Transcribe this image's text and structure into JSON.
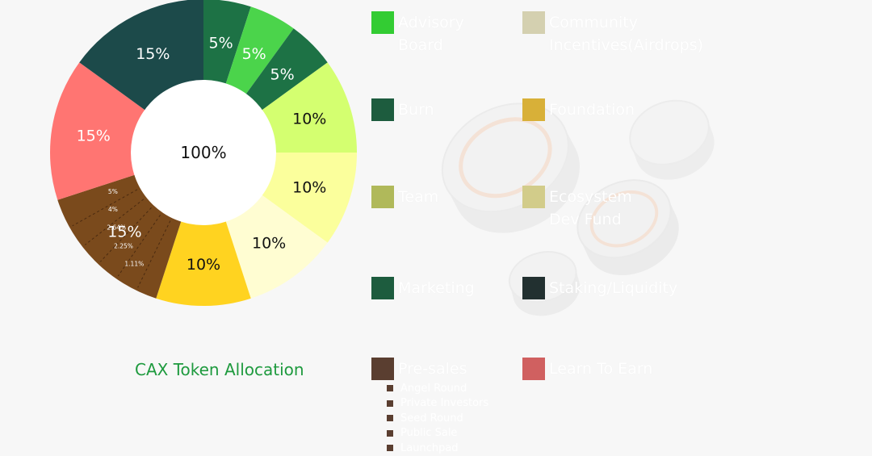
{
  "chart_data": {
    "type": "pie",
    "title": "CAX Token Allocation",
    "center_label": "100%",
    "slices": [
      {
        "label": "5%",
        "value": 5,
        "color": "#1d7245",
        "text_color": "#ffffff"
      },
      {
        "label": "5%",
        "value": 5,
        "color": "#4bd44b",
        "text_color": "#ffffff"
      },
      {
        "label": "5%",
        "value": 5,
        "color": "#1d7245",
        "text_color": "#ffffff"
      },
      {
        "label": "10%",
        "value": 10,
        "color": "#d4ff70",
        "text_color": "#111111"
      },
      {
        "label": "10%",
        "value": 10,
        "color": "#fbff9c",
        "text_color": "#111111"
      },
      {
        "label": "10%",
        "value": 10,
        "color": "#fffdd2",
        "text_color": "#111111"
      },
      {
        "label": "10%",
        "value": 10,
        "color": "#ffd320",
        "text_color": "#111111"
      },
      {
        "label": "15%",
        "value": 15,
        "color": "#7a4a1c",
        "text_color": "#ffffff"
      },
      {
        "label": "15%",
        "value": 15,
        "color": "#ff7572",
        "text_color": "#ffffff"
      },
      {
        "label": "15%",
        "value": 15,
        "color": "#1c4a4a",
        "text_color": "#ffffff"
      }
    ],
    "presale_breakdown": [
      {
        "label": "5%",
        "value": 5
      },
      {
        "label": "4%",
        "value": 4
      },
      {
        "label": "2.64%",
        "value": 2.64
      },
      {
        "label": "2.25%",
        "value": 2.25
      },
      {
        "label": "1.11%",
        "value": 1.11
      }
    ]
  },
  "legend": {
    "left": [
      {
        "label": "Advisory\nBoard",
        "color": "#33cc33"
      },
      {
        "label": "Burn",
        "color": "#1d5c3e"
      },
      {
        "label": "Team",
        "color": "#b0b95a"
      },
      {
        "label": "Marketing",
        "color": "#1d5c3e"
      },
      {
        "label": "Pre-sales",
        "color": "#5a3e30"
      }
    ],
    "right": [
      {
        "label": "Community\nIncentives(Airdrops)",
        "color": "#d4d0b0"
      },
      {
        "label": "Foundation",
        "color": "#d8b038"
      },
      {
        "label": "Ecosystem\nDev Fund",
        "color": "#d2cc8a"
      },
      {
        "label": "Staking/Liquidity",
        "color": "#223030"
      },
      {
        "label": "Learn To Earn",
        "color": "#d06060"
      }
    ],
    "presale_items": [
      "Angel Round",
      "Private Investors",
      "Seed Round",
      "Public Sale",
      "Launchpad"
    ]
  }
}
